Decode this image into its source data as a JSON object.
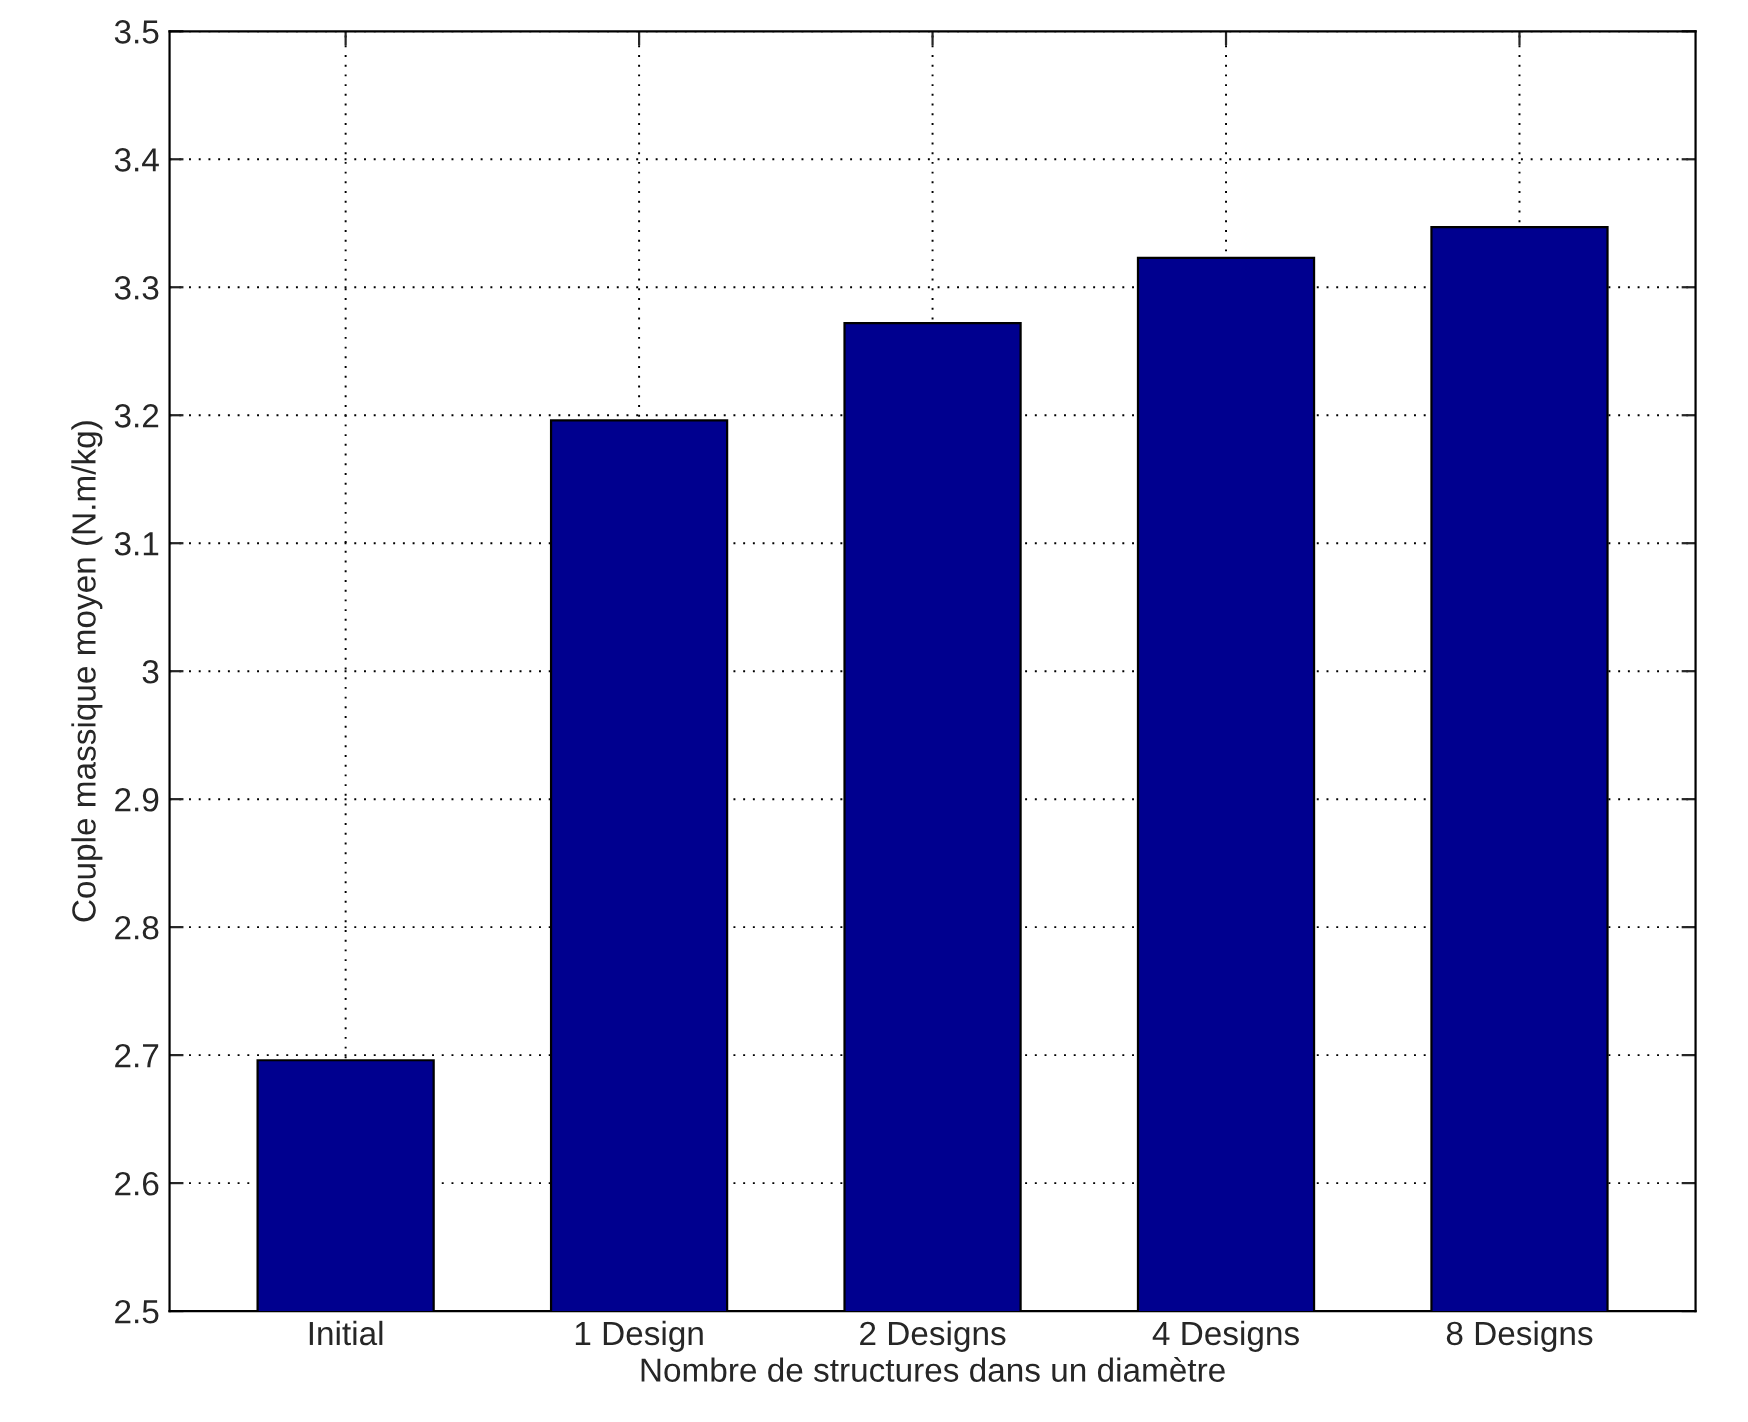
{
  "chart_data": {
    "type": "bar",
    "xlabel": "Nombre de structures dans un diamètre",
    "ylabel": "Couple massique moyen (N.m/kg)",
    "categories": [
      "Initial",
      "1 Design",
      "2 Designs",
      "4 Designs",
      "8 Designs"
    ],
    "values": [
      2.696,
      3.196,
      3.272,
      3.323,
      3.347
    ],
    "color": "#00008f",
    "ylim": [
      2.5,
      3.5
    ],
    "yticks": [
      2.5,
      2.6,
      2.7,
      2.8,
      2.9,
      3,
      3.1,
      3.2,
      3.3,
      3.4,
      3.5
    ],
    "grid": true
  }
}
